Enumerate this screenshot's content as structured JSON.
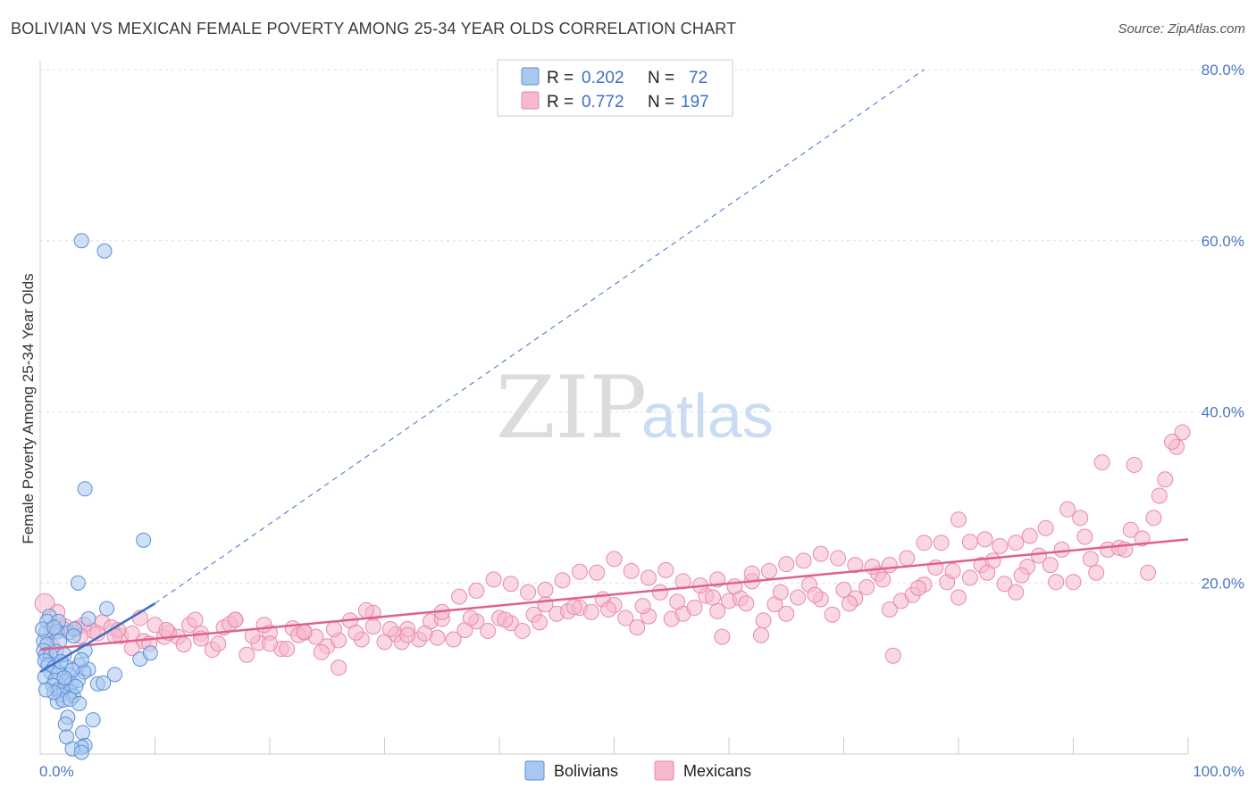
{
  "title": "BOLIVIAN VS MEXICAN FEMALE POVERTY AMONG 25-34 YEAR OLDS CORRELATION CHART",
  "source": "Source: ZipAtlas.com",
  "watermark": {
    "zip": "ZIP",
    "atlas": "atlas"
  },
  "legend": {
    "rows": [
      {
        "r_label": "R = ",
        "r_value": "0.202",
        "n_label": "N = ",
        "n_value": "72",
        "color": "#a9c8f0"
      },
      {
        "r_label": "R = ",
        "r_value": "0.772",
        "n_label": "N = ",
        "n_value": "197",
        "color": "#f6b8cc"
      }
    ]
  },
  "bottom_legend": [
    {
      "label": "Bolivians",
      "color": "#a9c8f0"
    },
    {
      "label": "Mexicans",
      "color": "#f6b8cc"
    }
  ],
  "colors": {
    "bolivians_fill": "#a9c8f0",
    "bolivians_stroke": "#5b8fd6",
    "bolivians_line": "#3d6fc8",
    "mexicans_fill": "#f6b8cc",
    "mexicans_stroke": "#e889a8",
    "mexicans_line": "#e0608c",
    "grid": "#dddddd",
    "tick_label": "#4a78c4"
  },
  "chart_data": {
    "type": "scatter",
    "ylabel": "Female Poverty Among 25-34 Year Olds",
    "xlim": [
      0,
      100
    ],
    "ylim": [
      0,
      80
    ],
    "x_tick_labels": [
      "0.0%",
      "100.0%"
    ],
    "y_ticks": [
      20,
      40,
      60,
      80
    ],
    "y_tick_labels": [
      "20.0%",
      "40.0%",
      "60.0%",
      "80.0%"
    ],
    "grid": "horizontal dashed",
    "legend_placement": "top-center",
    "series": [
      {
        "name": "Bolivians",
        "R": 0.202,
        "N": 72,
        "trend_solid": [
          [
            0,
            9.6
          ],
          [
            10,
            17.6
          ]
        ],
        "trend_dashed": [
          [
            10,
            17.6
          ],
          [
            77,
            80
          ]
        ],
        "points": [
          [
            3.6,
            60
          ],
          [
            5.6,
            58.8
          ],
          [
            3.9,
            31
          ],
          [
            9,
            25
          ],
          [
            3.3,
            20
          ],
          [
            5.8,
            17
          ],
          [
            0.8,
            16.1
          ],
          [
            0.6,
            15.5
          ],
          [
            1.6,
            15.5
          ],
          [
            4.2,
            15.8
          ],
          [
            0.5,
            14.2
          ],
          [
            1.5,
            14.3
          ],
          [
            2.5,
            14.2
          ],
          [
            3,
            14.6
          ],
          [
            0.3,
            13.2
          ],
          [
            0.6,
            12.8
          ],
          [
            1.7,
            13.2
          ],
          [
            0.3,
            12.1
          ],
          [
            0.5,
            11.6
          ],
          [
            0.9,
            11.6
          ],
          [
            3.9,
            12.1
          ],
          [
            8.7,
            11.1
          ],
          [
            9.6,
            11.8
          ],
          [
            0.4,
            10.9
          ],
          [
            0.7,
            10.4
          ],
          [
            1.2,
            10.1
          ],
          [
            2.3,
            10.2
          ],
          [
            3.4,
            10.4
          ],
          [
            4.2,
            9.9
          ],
          [
            0.9,
            9.6
          ],
          [
            1.6,
            9.5
          ],
          [
            2.5,
            9.2
          ],
          [
            3.8,
            9.6
          ],
          [
            6.5,
            9.3
          ],
          [
            0.4,
            9
          ],
          [
            1.3,
            8.6
          ],
          [
            2.3,
            8.6
          ],
          [
            2.7,
            8.2
          ],
          [
            3.3,
            8.6
          ],
          [
            5,
            8.2
          ],
          [
            5.5,
            8.3
          ],
          [
            1.1,
            8
          ],
          [
            1.5,
            7.5
          ],
          [
            2,
            7.5
          ],
          [
            2.6,
            7.3
          ],
          [
            1.8,
            6.9
          ],
          [
            2.9,
            6.8
          ],
          [
            1.5,
            6.1
          ],
          [
            2,
            6.3
          ],
          [
            2.6,
            6.4
          ],
          [
            3.4,
            5.9
          ],
          [
            2.4,
            4.3
          ],
          [
            2.2,
            3.5
          ],
          [
            4.6,
            4
          ],
          [
            3.7,
            2.5
          ],
          [
            2.3,
            2
          ],
          [
            3.9,
            1
          ],
          [
            3.6,
            0.8
          ],
          [
            2.8,
            0.6
          ],
          [
            3.6,
            0.2
          ],
          [
            1.4,
            12
          ],
          [
            2.1,
            11.6
          ],
          [
            0.2,
            14.6
          ],
          [
            1.2,
            14.8
          ],
          [
            2.9,
            13.8
          ],
          [
            3.6,
            11
          ],
          [
            1.8,
            10.8
          ],
          [
            2.8,
            9.8
          ],
          [
            1.2,
            7.2
          ],
          [
            2.1,
            8.9
          ],
          [
            0.5,
            7.5
          ],
          [
            3.1,
            7.9
          ]
        ]
      },
      {
        "name": "Mexicans",
        "R": 0.772,
        "N": 197,
        "trend": [
          [
            0,
            12.2
          ],
          [
            100,
            25.1
          ]
        ],
        "points": [
          [
            0.4,
            17.6
          ],
          [
            1,
            14.6
          ],
          [
            2.2,
            14.9
          ],
          [
            3.2,
            14.7
          ],
          [
            4.6,
            14.4
          ],
          [
            5.4,
            15.4
          ],
          [
            6.2,
            14.8
          ],
          [
            7,
            13.8
          ],
          [
            8,
            14.1
          ],
          [
            9,
            13.2
          ],
          [
            10,
            15.1
          ],
          [
            10.8,
            13.7
          ],
          [
            12,
            13.7
          ],
          [
            13,
            15.1
          ],
          [
            14,
            14.1
          ],
          [
            15,
            12.2
          ],
          [
            16,
            14.8
          ],
          [
            17,
            15.7
          ],
          [
            18,
            11.6
          ],
          [
            19,
            13
          ],
          [
            20,
            14.2
          ],
          [
            21,
            12.3
          ],
          [
            22,
            14.7
          ],
          [
            23,
            14.2
          ],
          [
            24,
            13.7
          ],
          [
            25,
            12.6
          ],
          [
            26,
            13.3
          ],
          [
            27,
            15.6
          ],
          [
            28,
            13.4
          ],
          [
            29,
            16.5
          ],
          [
            30,
            13.1
          ],
          [
            31,
            14
          ],
          [
            32,
            14.6
          ],
          [
            33,
            13.4
          ],
          [
            34,
            15.5
          ],
          [
            35,
            15.8
          ],
          [
            36,
            13.4
          ],
          [
            37,
            14.5
          ],
          [
            38,
            15.5
          ],
          [
            39,
            14.4
          ],
          [
            40,
            15.9
          ],
          [
            41,
            15.3
          ],
          [
            42,
            14.4
          ],
          [
            43,
            16.3
          ],
          [
            44,
            17.5
          ],
          [
            45,
            16.4
          ],
          [
            46,
            16.7
          ],
          [
            47,
            17.1
          ],
          [
            48,
            16.6
          ],
          [
            49,
            18.1
          ],
          [
            50,
            17.4
          ],
          [
            51,
            15.9
          ],
          [
            52,
            14.8
          ],
          [
            53,
            16.1
          ],
          [
            54,
            18.9
          ],
          [
            55,
            15.8
          ],
          [
            56,
            16.4
          ],
          [
            57,
            17.1
          ],
          [
            58,
            18.5
          ],
          [
            59,
            16.7
          ],
          [
            60,
            17.9
          ],
          [
            61,
            18.2
          ],
          [
            62,
            20.2
          ],
          [
            63,
            15.6
          ],
          [
            64,
            17.5
          ],
          [
            65,
            16.4
          ],
          [
            66,
            18.3
          ],
          [
            67,
            19.8
          ],
          [
            68,
            18.1
          ],
          [
            69,
            16.3
          ],
          [
            70,
            19.2
          ],
          [
            71,
            18.2
          ],
          [
            72,
            19.5
          ],
          [
            73,
            21.1
          ],
          [
            74,
            16.9
          ],
          [
            75,
            17.9
          ],
          [
            76,
            18.6
          ],
          [
            77,
            19.8
          ],
          [
            78,
            21.8
          ],
          [
            79,
            20.1
          ],
          [
            80,
            18.3
          ],
          [
            81,
            20.6
          ],
          [
            82,
            22.1
          ],
          [
            83,
            22.6
          ],
          [
            84,
            19.9
          ],
          [
            85,
            18.9
          ],
          [
            86,
            21.9
          ],
          [
            87,
            23.2
          ],
          [
            88,
            22.1
          ],
          [
            89,
            23.9
          ],
          [
            90,
            20.1
          ],
          [
            91,
            25.4
          ],
          [
            92,
            21.2
          ],
          [
            93,
            23.9
          ],
          [
            94,
            24.1
          ],
          [
            95,
            26.2
          ],
          [
            96,
            25.2
          ],
          [
            97,
            27.6
          ],
          [
            98,
            32.1
          ],
          [
            99,
            35.9
          ],
          [
            99.5,
            37.6
          ],
          [
            1.5,
            16.6
          ],
          [
            3.8,
            15.1
          ],
          [
            6.8,
            14.5
          ],
          [
            8.7,
            15.9
          ],
          [
            11.2,
            14.2
          ],
          [
            13.5,
            15.7
          ],
          [
            16.5,
            15.2
          ],
          [
            19.5,
            15.1
          ],
          [
            22.5,
            13.9
          ],
          [
            25.6,
            14.6
          ],
          [
            28.4,
            16.8
          ],
          [
            31.5,
            13.1
          ],
          [
            34.6,
            13.6
          ],
          [
            37.5,
            15.9
          ],
          [
            40.5,
            15.7
          ],
          [
            43.5,
            15.4
          ],
          [
            46.5,
            17.2
          ],
          [
            49.5,
            16.9
          ],
          [
            52.5,
            17.3
          ],
          [
            55.5,
            17.8
          ],
          [
            58.6,
            18.3
          ],
          [
            61.5,
            17.6
          ],
          [
            64.5,
            18.9
          ],
          [
            67.5,
            18.6
          ],
          [
            70.5,
            17.6
          ],
          [
            73.4,
            20.4
          ],
          [
            76.5,
            19.4
          ],
          [
            79.5,
            21.4
          ],
          [
            82.5,
            21.2
          ],
          [
            85.5,
            20.9
          ],
          [
            88.5,
            20.1
          ],
          [
            91.5,
            22.8
          ],
          [
            94.5,
            23.9
          ],
          [
            96.5,
            21.2
          ],
          [
            97.5,
            30.2
          ],
          [
            98.6,
            36.5
          ],
          [
            95.3,
            33.8
          ],
          [
            92.5,
            34.1
          ],
          [
            90.6,
            27.6
          ],
          [
            89.5,
            28.6
          ],
          [
            87.6,
            26.4
          ],
          [
            86.2,
            25.5
          ],
          [
            85,
            24.7
          ],
          [
            83.6,
            24.3
          ],
          [
            82.3,
            25.1
          ],
          [
            81,
            24.8
          ],
          [
            80,
            27.4
          ],
          [
            78.5,
            24.7
          ],
          [
            77,
            24.7
          ],
          [
            75.5,
            22.9
          ],
          [
            74,
            22.1
          ],
          [
            72.5,
            21.9
          ],
          [
            71,
            22.1
          ],
          [
            69.5,
            22.9
          ],
          [
            68,
            23.4
          ],
          [
            66.5,
            22.6
          ],
          [
            65,
            22.2
          ],
          [
            63.5,
            21.4
          ],
          [
            62,
            21.1
          ],
          [
            60.5,
            19.6
          ],
          [
            59,
            20.4
          ],
          [
            57.5,
            19.7
          ],
          [
            56,
            20.2
          ],
          [
            54.5,
            21.5
          ],
          [
            53,
            20.6
          ],
          [
            51.5,
            21.4
          ],
          [
            50,
            22.8
          ],
          [
            48.5,
            21.2
          ],
          [
            47,
            21.3
          ],
          [
            45.5,
            20.3
          ],
          [
            44,
            19.2
          ],
          [
            42.5,
            18.9
          ],
          [
            41,
            19.9
          ],
          [
            39.5,
            20.4
          ],
          [
            38,
            19.1
          ],
          [
            36.5,
            18.4
          ],
          [
            35,
            16.6
          ],
          [
            33.5,
            14.1
          ],
          [
            32,
            13.9
          ],
          [
            30.5,
            14.6
          ],
          [
            29,
            14.9
          ],
          [
            27.5,
            14.2
          ],
          [
            26,
            10.1
          ],
          [
            24.5,
            11.9
          ],
          [
            23,
            14.3
          ],
          [
            21.5,
            12.3
          ],
          [
            20,
            12.9
          ],
          [
            18.5,
            13.8
          ],
          [
            17,
            15.7
          ],
          [
            15.5,
            12.9
          ],
          [
            14,
            13.5
          ],
          [
            12.5,
            12.8
          ],
          [
            11,
            14.5
          ],
          [
            9.5,
            12.9
          ],
          [
            8,
            12.4
          ],
          [
            6.5,
            13.8
          ],
          [
            5,
            14.1
          ],
          [
            3.5,
            13.8
          ],
          [
            2,
            14.6
          ],
          [
            1,
            12.6
          ],
          [
            74.3,
            11.5
          ],
          [
            59.4,
            13.7
          ],
          [
            62.8,
            13.9
          ]
        ]
      }
    ]
  }
}
